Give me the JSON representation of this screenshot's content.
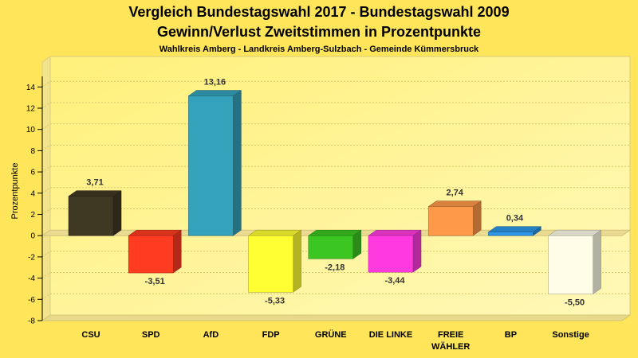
{
  "chart_data": {
    "type": "bar",
    "title": "Vergleich Bundestagswahl 2017 - Bundestagswahl 2009",
    "title2": "Gewinn/Verlust Zweitstimmen in Prozentpunkte",
    "subtitle": "Wahlkreis Amberg - Landkreis Amberg-Sulzbach - Gemeinde Kümmersbruck",
    "ylabel": "Prozentpunkte",
    "xlabel": "",
    "ylim": [
      -8,
      15
    ],
    "yticks": [
      "-8",
      "-6",
      "-4",
      "-2",
      "0",
      "2",
      "4",
      "6",
      "8",
      "10",
      "12",
      "14"
    ],
    "grid": true,
    "categories": [
      {
        "line1": "CSU",
        "line2": ""
      },
      {
        "line1": "SPD",
        "line2": ""
      },
      {
        "line1": "AfD",
        "line2": ""
      },
      {
        "line1": "FDP",
        "line2": ""
      },
      {
        "line1": "GRÜNE",
        "line2": ""
      },
      {
        "line1": "DIE LINKE",
        "line2": ""
      },
      {
        "line1": "FREIE",
        "line2": "WÄHLER"
      },
      {
        "line1": "BP",
        "line2": ""
      },
      {
        "line1": "Sonstige",
        "line2": ""
      }
    ],
    "values": [
      3.71,
      -3.51,
      13.16,
      -5.33,
      -2.18,
      -3.44,
      2.74,
      0.34,
      -5.5
    ],
    "labels": [
      "3,71",
      "-3,51",
      "13,16",
      "-5,33",
      "-2,18",
      "-3,44",
      "2,74",
      "0,34",
      "-5,50"
    ],
    "colors": [
      "#3F3822",
      "#FF3B22",
      "#35A2BC",
      "#FFFF33",
      "#3CC622",
      "#FF3BE0",
      "#FF994A",
      "#2D96E6",
      "#FFFDE8"
    ]
  }
}
